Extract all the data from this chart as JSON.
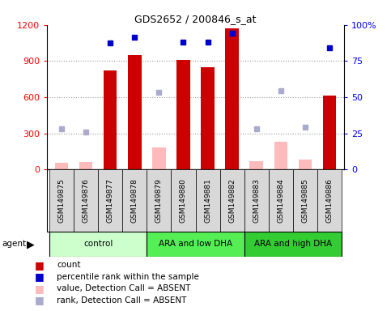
{
  "title": "GDS2652 / 200846_s_at",
  "samples": [
    "GSM149875",
    "GSM149876",
    "GSM149877",
    "GSM149878",
    "GSM149879",
    "GSM149880",
    "GSM149881",
    "GSM149882",
    "GSM149883",
    "GSM149884",
    "GSM149885",
    "GSM149886"
  ],
  "groups": [
    {
      "label": "control",
      "color": "#ccffcc",
      "start": 0,
      "end": 4
    },
    {
      "label": "ARA and low DHA",
      "color": "#55ee55",
      "start": 4,
      "end": 8
    },
    {
      "label": "ARA and high DHA",
      "color": "#33cc33",
      "start": 8,
      "end": 12
    }
  ],
  "count_present": [
    null,
    null,
    820,
    950,
    null,
    910,
    850,
    1170,
    null,
    null,
    null,
    615
  ],
  "count_absent": [
    55,
    65,
    null,
    null,
    185,
    null,
    null,
    null,
    70,
    230,
    85,
    null
  ],
  "rank_present": [
    null,
    null,
    1050,
    1100,
    null,
    1060,
    1060,
    1130,
    null,
    null,
    null,
    1010
  ],
  "rank_absent": [
    340,
    310,
    null,
    null,
    640,
    null,
    null,
    null,
    340,
    655,
    350,
    null
  ],
  "ylim_left": [
    0,
    1200
  ],
  "ylim_right": [
    0,
    100
  ],
  "yticks_left": [
    0,
    300,
    600,
    900,
    1200
  ],
  "ytick_labels_left": [
    "0",
    "300",
    "600",
    "900",
    "1200"
  ],
  "yticks_right": [
    0,
    25,
    50,
    75,
    100
  ],
  "ytick_labels_right": [
    "0",
    "25",
    "50",
    "75",
    "100%"
  ],
  "bar_color_present": "#cc0000",
  "bar_color_absent": "#ffbbbb",
  "dot_color_present": "#0000cc",
  "dot_color_absent": "#aaaacc",
  "cell_color": "#d8d8d8",
  "legend_items": [
    {
      "color": "#cc0000",
      "label": "count"
    },
    {
      "color": "#0000cc",
      "label": "percentile rank within the sample"
    },
    {
      "color": "#ffbbbb",
      "label": "value, Detection Call = ABSENT"
    },
    {
      "color": "#aaaacc",
      "label": "rank, Detection Call = ABSENT"
    }
  ]
}
